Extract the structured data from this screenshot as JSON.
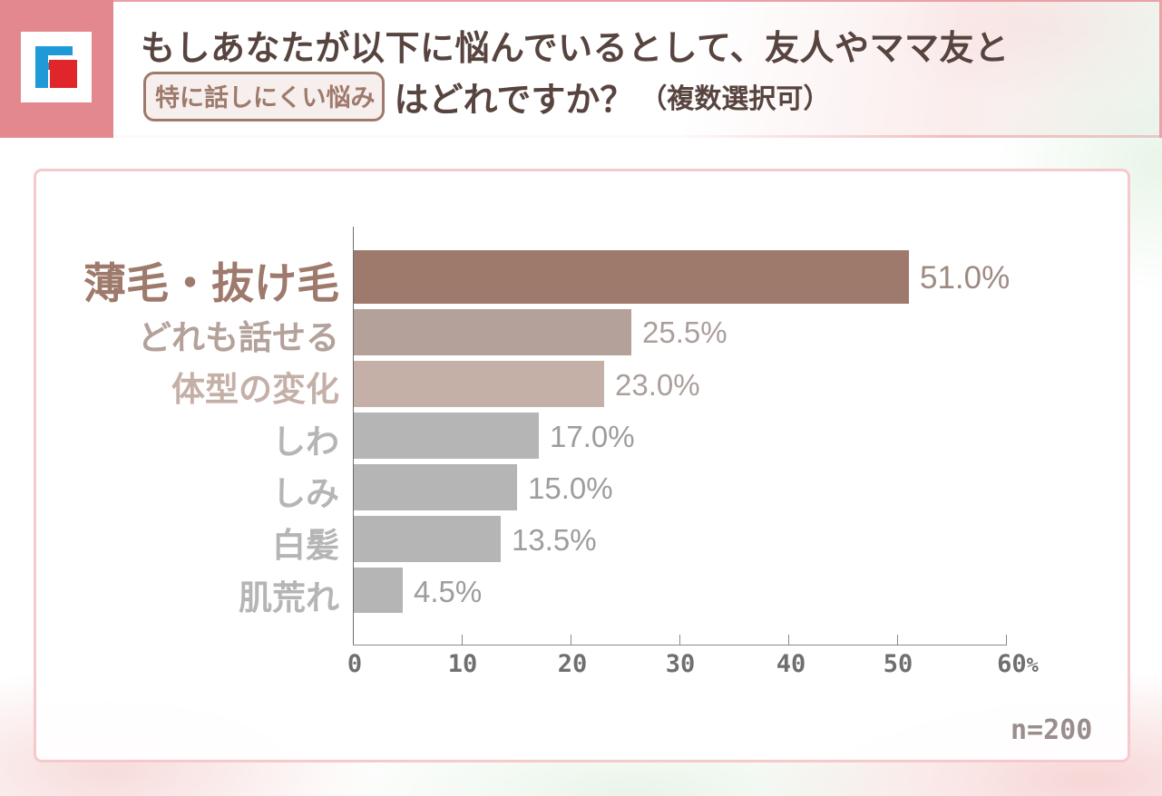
{
  "header": {
    "logo": {
      "icon": "fp-logo-icon",
      "colors": {
        "blue": "#1f9ad9",
        "red": "#e0262a",
        "band": "#e4888f"
      }
    },
    "title_line1": "もしあなたが以下に悩んでいるとして、友人やママ友と",
    "title_highlight": "特に話しにくい悩み",
    "title_line2_rest": "はどれですか？",
    "title_note": "（複数選択可）"
  },
  "chart_data": {
    "type": "bar",
    "orientation": "horizontal",
    "title": "もしあなたが以下に悩んでいるとして、友人やママ友と特に話しにくい悩みはどれですか？（複数選択可）",
    "categories": [
      "薄毛・抜け毛",
      "どれも話せる",
      "体型の変化",
      "しわ",
      "しみ",
      "白髪",
      "肌荒れ"
    ],
    "values": [
      51.0,
      25.5,
      23.0,
      17.0,
      15.0,
      13.5,
      4.5
    ],
    "value_labels": [
      "51.0%",
      "25.5%",
      "23.0%",
      "17.0%",
      "15.0%",
      "13.5%",
      "4.5%"
    ],
    "xlabel": "",
    "ylabel": "",
    "xlim": [
      0,
      60
    ],
    "x_ticks": [
      "0",
      "10",
      "20",
      "30",
      "40",
      "50",
      "60"
    ],
    "x_tick_unit": "%",
    "grid": false,
    "legend": "none",
    "bar_colors": [
      "#9e7a6c",
      "#b3a19a",
      "#c5b0a8",
      "#b5b5b5",
      "#b5b5b5",
      "#b5b5b5",
      "#b5b5b5"
    ],
    "label_colors": [
      "#9e7a6c",
      "#b3a19a",
      "#c5b0a8",
      "#b5b5b5",
      "#b5b5b5",
      "#b5b5b5",
      "#b5b5b5"
    ],
    "value_colors": [
      "#9e8a82",
      "#ab9f9b",
      "#ab9f9b",
      "#9d9d9d",
      "#9d9d9d",
      "#9d9d9d",
      "#9d9d9d"
    ],
    "sample_size": "n=200"
  }
}
